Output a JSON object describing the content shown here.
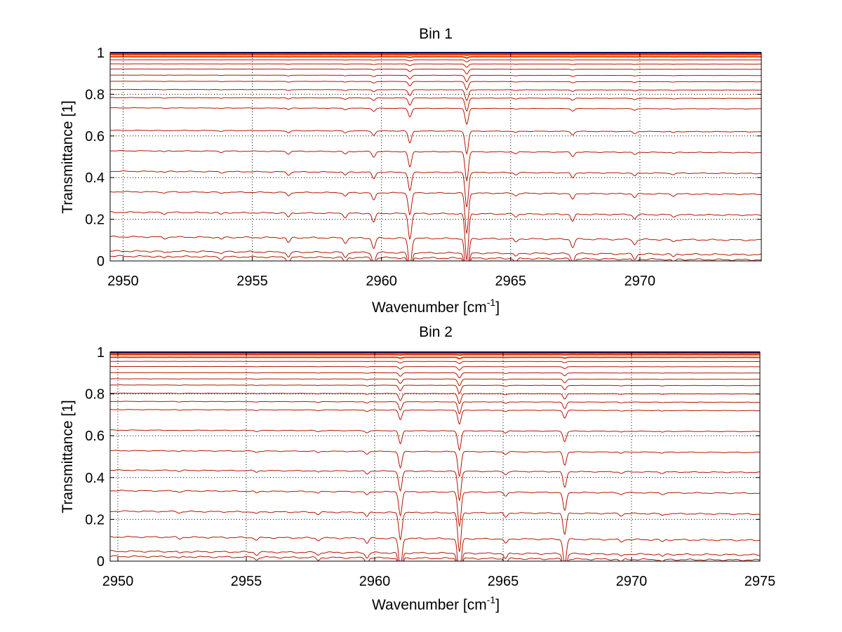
{
  "chart_data": [
    {
      "type": "line",
      "title": "Bin 1",
      "xlabel": "Wavenumber [cm",
      "xlabel_sup": "-1",
      "xlabel_end": "]",
      "ylabel": "Transmittance [1]",
      "xlim": [
        2949.5,
        2974.7
      ],
      "ylim": [
        0,
        1
      ],
      "xticks": [
        2950,
        2955,
        2960,
        2965,
        2970
      ],
      "xtick_labels": [
        "2950",
        "2955",
        "2960",
        "2965",
        "2970"
      ],
      "yticks": [
        0,
        0.2,
        0.4,
        0.6,
        0.8,
        1
      ],
      "ytick_labels": [
        "0",
        "0.2",
        "0.4",
        "0.6",
        "0.8",
        "1"
      ],
      "grid": true,
      "reference_line": {
        "y": 1.0,
        "color": "#1414b4"
      },
      "baselines": [
        0.005,
        0.03,
        0.1,
        0.22,
        0.32,
        0.42,
        0.52,
        0.62,
        0.73,
        0.78,
        0.82,
        0.86,
        0.89,
        0.92,
        0.945,
        0.965,
        0.98,
        0.99,
        0.995
      ],
      "absorption_lines": [
        {
          "x": 2961.1,
          "depth": 0.07
        },
        {
          "x": 2963.3,
          "depth": 0.13
        },
        {
          "x": 2959.7,
          "depth": 0.025
        },
        {
          "x": 2958.6,
          "depth": 0.012
        },
        {
          "x": 2956.4,
          "depth": 0.012
        },
        {
          "x": 2967.4,
          "depth": 0.02
        },
        {
          "x": 2969.8,
          "depth": 0.012
        },
        {
          "x": 2965.2,
          "depth": 0.008
        },
        {
          "x": 2971.3,
          "depth": 0.006
        },
        {
          "x": 2953.8,
          "depth": 0.005
        },
        {
          "x": 2951.6,
          "depth": 0.004
        }
      ],
      "series_color": "#b41400",
      "top_series_color": "#e63c00"
    },
    {
      "type": "line",
      "title": "Bin 2",
      "xlabel": "Wavenumber [cm",
      "xlabel_sup": "-1",
      "xlabel_end": "]",
      "ylabel": "Transmittance [1]",
      "xlim": [
        2949.7,
        2975
      ],
      "ylim": [
        0,
        1
      ],
      "xticks": [
        2950,
        2955,
        2960,
        2965,
        2970,
        2975
      ],
      "xtick_labels": [
        "2950",
        "2955",
        "2960",
        "2965",
        "2970",
        "2975"
      ],
      "yticks": [
        0,
        0.2,
        0.4,
        0.6,
        0.8,
        1
      ],
      "ytick_labels": [
        "0",
        "0.2",
        "0.4",
        "0.6",
        "0.8",
        "1"
      ],
      "grid": true,
      "reference_line": {
        "y": 1.0,
        "color": "#1414b4"
      },
      "baselines": [
        0.005,
        0.03,
        0.1,
        0.225,
        0.325,
        0.425,
        0.52,
        0.62,
        0.72,
        0.76,
        0.8,
        0.84,
        0.87,
        0.9,
        0.93,
        0.955,
        0.975,
        0.988,
        0.995
      ],
      "absorption_lines": [
        {
          "x": 2961.0,
          "depth": 0.075
        },
        {
          "x": 2963.3,
          "depth": 0.11
        },
        {
          "x": 2967.4,
          "depth": 0.06
        },
        {
          "x": 2965.1,
          "depth": 0.012
        },
        {
          "x": 2959.7,
          "depth": 0.012
        },
        {
          "x": 2955.4,
          "depth": 0.006
        },
        {
          "x": 2957.8,
          "depth": 0.006
        },
        {
          "x": 2969.6,
          "depth": 0.006
        },
        {
          "x": 2971.2,
          "depth": 0.005
        },
        {
          "x": 2952.4,
          "depth": 0.004
        }
      ],
      "series_color": "#b41400",
      "top_series_color": "#e63c00"
    }
  ]
}
